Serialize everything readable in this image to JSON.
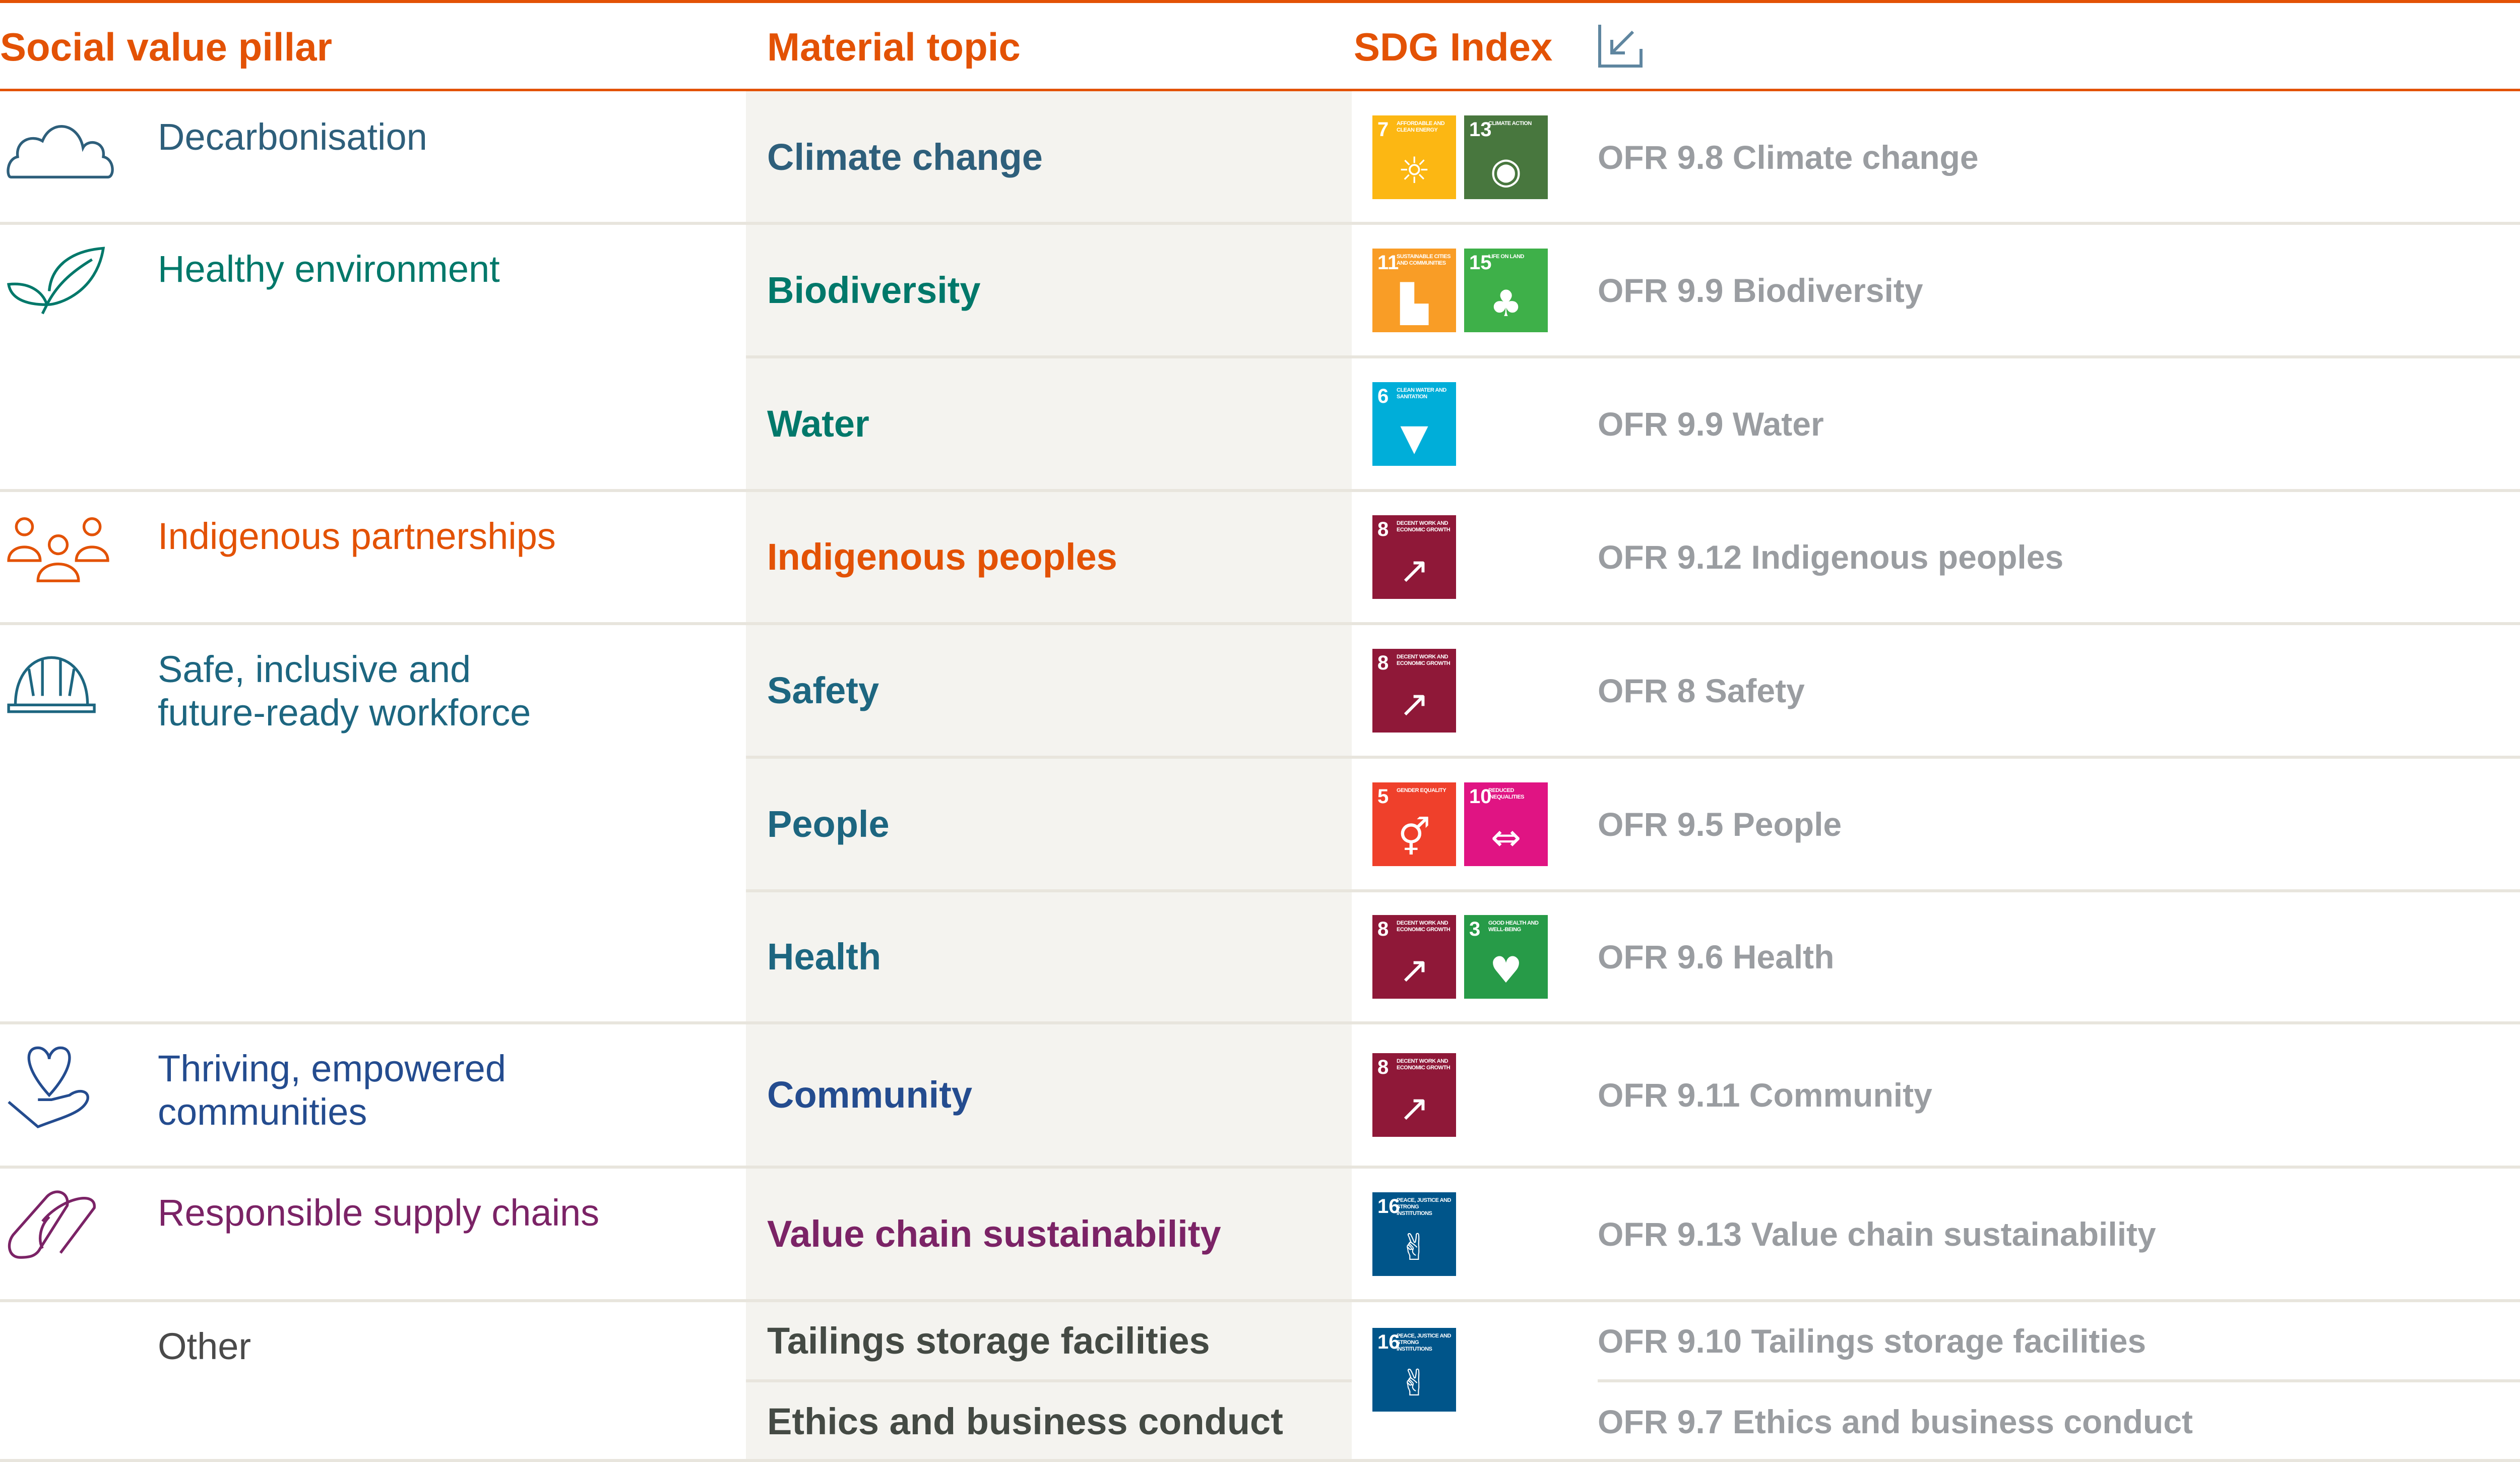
{
  "header": {
    "pillar": "Social value pillar",
    "topic": "Material topic",
    "sdg": "SDG Index",
    "export_icon": "arrow-into-box-icon"
  },
  "colors": {
    "accent": "#e35205",
    "ofr_text": "#9a9da1",
    "topic_bg": "#f4f3ef"
  },
  "sdg_goals": {
    "3": {
      "title": "GOOD HEALTH AND WELL-BEING",
      "color": "#279b48",
      "icon": "heartbeat-icon"
    },
    "5": {
      "title": "GENDER EQUALITY",
      "color": "#ef402b",
      "icon": "gender-icon"
    },
    "6": {
      "title": "CLEAN WATER AND SANITATION",
      "color": "#00aed9",
      "icon": "water-glass-icon"
    },
    "7": {
      "title": "AFFORDABLE AND CLEAN ENERGY",
      "color": "#fcb713",
      "icon": "sun-power-icon"
    },
    "8": {
      "title": "DECENT WORK AND ECONOMIC GROWTH",
      "color": "#8f1838",
      "icon": "growth-chart-icon"
    },
    "10": {
      "title": "REDUCED INEQUALITIES",
      "color": "#e01483",
      "icon": "equality-icon"
    },
    "11": {
      "title": "SUSTAINABLE CITIES AND COMMUNITIES",
      "color": "#f99d26",
      "icon": "buildings-icon"
    },
    "13": {
      "title": "CLIMATE ACTION",
      "color": "#48773e",
      "icon": "eye-globe-icon"
    },
    "15": {
      "title": "LIFE ON LAND",
      "color": "#3eb049",
      "icon": "tree-birds-icon"
    },
    "16": {
      "title": "PEACE, JUSTICE AND STRONG INSTITUTIONS",
      "color": "#00558a",
      "icon": "dove-gavel-icon"
    }
  },
  "pillars": [
    {
      "label": "Decarbonisation",
      "icon": "cloud-icon",
      "color": "#2e5f7b"
    },
    {
      "label": "Healthy environment",
      "icon": "leaf-icon",
      "color": "#00786a"
    },
    {
      "label": "Indigenous partnerships",
      "icon": "people-icon",
      "color": "#e35205"
    },
    {
      "label": "Safe, inclusive and\nfuture-ready workforce",
      "icon": "hard-hat-icon",
      "color": "#1d6680"
    },
    {
      "label": "Thriving, empowered\ncommunities",
      "icon": "heart-hand-icon",
      "color": "#244c8f"
    },
    {
      "label": "Responsible supply chains",
      "icon": "chain-link-icon",
      "color": "#7b2366"
    },
    {
      "label": "Other",
      "icon": "",
      "color": "#4a4a4a"
    }
  ],
  "rows": [
    {
      "pillar": 0,
      "topic": "Climate change",
      "sdgs": [
        "7",
        "13"
      ],
      "ofr": "OFR 9.8 Climate change"
    },
    {
      "pillar": 1,
      "topic": "Biodiversity",
      "sdgs": [
        "11",
        "15"
      ],
      "ofr": "OFR 9.9 Biodiversity"
    },
    {
      "pillar": 1,
      "topic": "Water",
      "sdgs": [
        "6"
      ],
      "ofr": "OFR 9.9 Water"
    },
    {
      "pillar": 2,
      "topic": "Indigenous peoples",
      "sdgs": [
        "8"
      ],
      "ofr": "OFR 9.12 Indigenous peoples"
    },
    {
      "pillar": 3,
      "topic": "Safety",
      "sdgs": [
        "8"
      ],
      "ofr": "OFR 8 Safety"
    },
    {
      "pillar": 3,
      "topic": "People",
      "sdgs": [
        "5",
        "10"
      ],
      "ofr": "OFR 9.5 People"
    },
    {
      "pillar": 3,
      "topic": "Health",
      "sdgs": [
        "8",
        "3"
      ],
      "ofr": "OFR 9.6 Health"
    },
    {
      "pillar": 4,
      "topic": "Community",
      "sdgs": [
        "8"
      ],
      "ofr": "OFR 9.11 Community"
    },
    {
      "pillar": 5,
      "topic": "Value chain sustainability",
      "sdgs": [
        "16"
      ],
      "ofr": "OFR 9.13 Value chain sustainability"
    },
    {
      "pillar": 6,
      "topic": "Tailings storage facilities",
      "sdgs": [
        "16"
      ],
      "ofr": "OFR 9.10 Tailings storage facilities"
    },
    {
      "pillar": 6,
      "topic": "Ethics and business conduct",
      "sdgs": [],
      "ofr": "OFR 9.7 Ethics and business conduct"
    }
  ]
}
